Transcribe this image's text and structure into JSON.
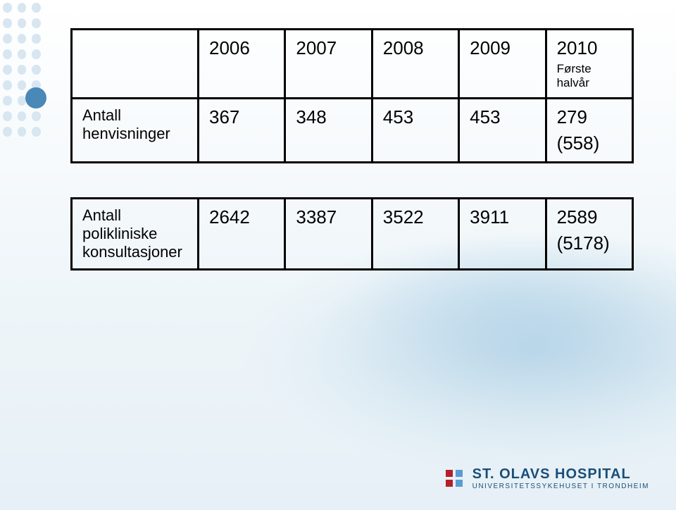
{
  "decor": {
    "dot_color_faded": "#d7e6f0",
    "dot_color_accent": "#4a88b8"
  },
  "table1": {
    "header": {
      "col1": "2006",
      "col2": "2007",
      "col3": "2008",
      "col4": "2009",
      "col5_line1": "2010",
      "col5_line2": "Første halvår"
    },
    "row1": {
      "label": "Antall henvisninger",
      "c1": "367",
      "c2": "348",
      "c3": "453",
      "c4": "453",
      "c5_line1": "279",
      "c5_line2": "(558)"
    }
  },
  "table2": {
    "row1": {
      "label": "Antall polikliniske konsultasjoner",
      "c1": "2642",
      "c2": "3387",
      "c3": "3522",
      "c4": "3911",
      "c5_line1": "2589",
      "c5_line2": "(5178)"
    }
  },
  "footer": {
    "brand_line1": "ST. OLAVS HOSPITAL",
    "brand_line2": "UNIVERSITETSSYKEHUSET I TRONDHEIM",
    "logo_colors": [
      "#b51f2a",
      "#5a9bd4",
      "#b51f2a",
      "#5a9bd4"
    ]
  }
}
